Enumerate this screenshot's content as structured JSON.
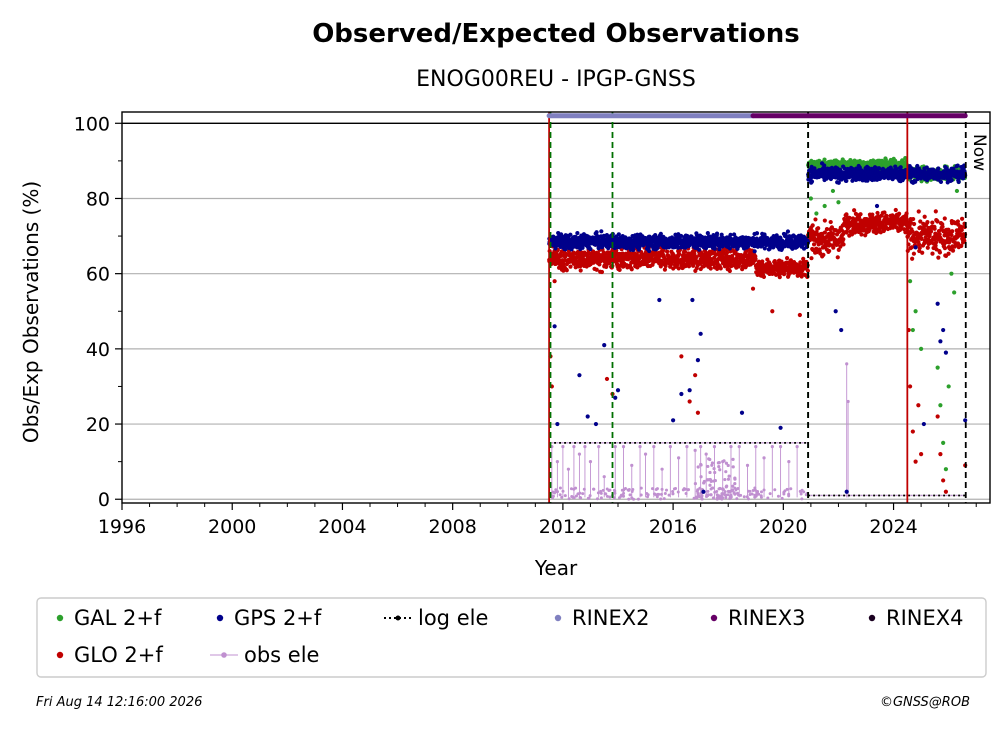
{
  "chart_data": {
    "type": "scatter",
    "title": "Observed/Expected Observations",
    "subtitle": "ENOG00REU - IPGP-GNSS",
    "xlabel": "Year",
    "ylabel": "Obs/Exp Observations (%)",
    "xlim": [
      1996,
      2027.5
    ],
    "ylim": [
      -1,
      103
    ],
    "x_ticks": [
      1996,
      2000,
      2004,
      2008,
      2012,
      2016,
      2020,
      2024
    ],
    "y_ticks": [
      0,
      20,
      40,
      60,
      80,
      100
    ],
    "grid": "horizontal",
    "legend_placement": "bottom",
    "now_label": "Now",
    "now_year": 2026.62,
    "legend": [
      {
        "label": "GAL 2+f",
        "color": "#2ca02c",
        "kind": "dot"
      },
      {
        "label": "GPS 2+f",
        "color": "#00008b",
        "kind": "dot"
      },
      {
        "label": "log ele",
        "color": "#000000",
        "kind": "dotted-line"
      },
      {
        "label": "RINEX2",
        "color": "#8080c0",
        "kind": "dot"
      },
      {
        "label": "RINEX3",
        "color": "#660066",
        "kind": "dot"
      },
      {
        "label": "RINEX4",
        "color": "#1a0020",
        "kind": "dot"
      },
      {
        "label": "GLO 2+f",
        "color": "#c00000",
        "kind": "dot"
      },
      {
        "label": "obs ele",
        "color": "#c090d0",
        "kind": "line-dot"
      }
    ],
    "rinex_bars": [
      {
        "name": "RINEX2",
        "x": [
          2011.5,
          2018.9
        ],
        "y": 102,
        "color": "#8080c0"
      },
      {
        "name": "RINEX3",
        "x": [
          2018.9,
          2026.6
        ],
        "y": 102,
        "color": "#660066"
      }
    ],
    "event_lines": [
      {
        "x": 2011.5,
        "color": "#c00000",
        "style": "solid"
      },
      {
        "x": 2011.55,
        "color": "#007000",
        "style": "dashed"
      },
      {
        "x": 2013.8,
        "color": "#007000",
        "style": "dashed"
      },
      {
        "x": 2020.9,
        "color": "#007000",
        "style": "dashed"
      },
      {
        "x": 2020.9,
        "color": "#000000",
        "style": "dashed"
      },
      {
        "x": 2024.5,
        "color": "#c00000",
        "style": "solid"
      },
      {
        "x": 2026.62,
        "color": "#000000",
        "style": "dashed"
      }
    ],
    "log_ele": [
      {
        "x": [
          2011.5,
          2020.9
        ],
        "y": 15
      },
      {
        "x": [
          2020.9,
          2026.6
        ],
        "y": 1
      }
    ],
    "series": [
      {
        "name": "GPS 2+f",
        "color": "#00008b",
        "segments": [
          {
            "x": [
              2011.5,
              2020.9
            ],
            "y_center": 68.5,
            "spread": 2.0
          },
          {
            "x": [
              2020.9,
              2024.5
            ],
            "y_center": 86.5,
            "spread": 2.0
          },
          {
            "x": [
              2024.5,
              2026.6
            ],
            "y_center": 86.5,
            "spread": 2.0
          }
        ],
        "outliers": [
          [
            2011.7,
            46
          ],
          [
            2011.8,
            20
          ],
          [
            2012.6,
            33
          ],
          [
            2012.9,
            22
          ],
          [
            2013.2,
            20
          ],
          [
            2013.5,
            41
          ],
          [
            2013.9,
            27
          ],
          [
            2014.0,
            29
          ],
          [
            2015.5,
            53
          ],
          [
            2016.0,
            21
          ],
          [
            2016.3,
            28
          ],
          [
            2016.6,
            29
          ],
          [
            2016.7,
            53
          ],
          [
            2016.9,
            37
          ],
          [
            2017.0,
            44
          ],
          [
            2017.1,
            2
          ],
          [
            2018.5,
            23
          ],
          [
            2019.9,
            19
          ],
          [
            2021.9,
            50
          ],
          [
            2022.1,
            45
          ],
          [
            2022.3,
            2
          ],
          [
            2023.4,
            78
          ],
          [
            2024.8,
            67
          ],
          [
            2025.1,
            20
          ],
          [
            2025.6,
            52
          ],
          [
            2025.7,
            42
          ],
          [
            2025.8,
            45
          ],
          [
            2025.9,
            39
          ],
          [
            2026.6,
            21
          ]
        ]
      },
      {
        "name": "GLO 2+f",
        "color": "#c00000",
        "segments": [
          {
            "x": [
              2011.5,
              2019.0
            ],
            "y_center": 64.0,
            "spread": 3.0
          },
          {
            "x": [
              2019.0,
              2020.9
            ],
            "y_center": 61.5,
            "spread": 2.5
          },
          {
            "x": [
              2020.9,
              2022.2
            ],
            "y_center": 69.0,
            "spread": 4.0
          },
          {
            "x": [
              2022.2,
              2024.5
            ],
            "y_center": 73.5,
            "spread": 3.0
          },
          {
            "x": [
              2024.5,
              2026.6
            ],
            "y_center": 70.0,
            "spread": 5.0
          }
        ],
        "outliers": [
          [
            2011.55,
            38
          ],
          [
            2011.6,
            30
          ],
          [
            2011.7,
            58
          ],
          [
            2013.6,
            32
          ],
          [
            2013.8,
            28
          ],
          [
            2016.3,
            38
          ],
          [
            2016.6,
            26
          ],
          [
            2016.8,
            33
          ],
          [
            2016.9,
            23
          ],
          [
            2018.9,
            56
          ],
          [
            2019.6,
            50
          ],
          [
            2020.6,
            49
          ],
          [
            2024.55,
            45
          ],
          [
            2024.6,
            30
          ],
          [
            2024.7,
            18
          ],
          [
            2024.8,
            10
          ],
          [
            2024.9,
            25
          ],
          [
            2025.0,
            12
          ],
          [
            2025.6,
            22
          ],
          [
            2025.7,
            12
          ],
          [
            2025.8,
            5
          ],
          [
            2025.9,
            2
          ],
          [
            2026.6,
            9
          ]
        ]
      },
      {
        "name": "GAL 2+f",
        "color": "#2ca02c",
        "segments": [
          {
            "x": [
              2020.9,
              2024.5
            ],
            "y_center": 89.0,
            "spread": 1.3
          },
          {
            "x": [
              2024.5,
              2026.6
            ],
            "y_center": 86.5,
            "spread": 2.0
          }
        ],
        "outliers": [
          [
            2021.0,
            80
          ],
          [
            2021.2,
            76
          ],
          [
            2021.5,
            78
          ],
          [
            2021.8,
            82
          ],
          [
            2022.0,
            79
          ],
          [
            2024.6,
            58
          ],
          [
            2024.7,
            45
          ],
          [
            2024.8,
            50
          ],
          [
            2025.0,
            40
          ],
          [
            2025.6,
            35
          ],
          [
            2025.7,
            25
          ],
          [
            2025.8,
            15
          ],
          [
            2025.9,
            8
          ],
          [
            2026.0,
            30
          ],
          [
            2026.1,
            60
          ],
          [
            2026.2,
            55
          ],
          [
            2026.3,
            82
          ]
        ]
      },
      {
        "name": "obs ele",
        "color": "#c090d0",
        "range": [
          2011.5,
          2020.9
        ],
        "base": [
          0,
          3
        ],
        "spikes": [
          [
            2011.6,
            14
          ],
          [
            2011.8,
            10
          ],
          [
            2012.0,
            14
          ],
          [
            2012.2,
            8
          ],
          [
            2012.4,
            14
          ],
          [
            2012.6,
            12
          ],
          [
            2012.8,
            14
          ],
          [
            2013.0,
            10
          ],
          [
            2013.3,
            14
          ],
          [
            2013.5,
            6
          ],
          [
            2013.9,
            14
          ],
          [
            2014.2,
            14
          ],
          [
            2014.5,
            9
          ],
          [
            2014.8,
            14
          ],
          [
            2015.0,
            12
          ],
          [
            2015.3,
            14
          ],
          [
            2015.6,
            8
          ],
          [
            2015.9,
            14
          ],
          [
            2016.2,
            11
          ],
          [
            2016.5,
            14
          ],
          [
            2016.8,
            13
          ],
          [
            2017.0,
            14
          ],
          [
            2017.2,
            12
          ],
          [
            2017.5,
            14
          ],
          [
            2017.8,
            10
          ],
          [
            2018.1,
            14
          ],
          [
            2018.4,
            14
          ],
          [
            2018.7,
            9
          ],
          [
            2019.0,
            14
          ],
          [
            2019.3,
            11
          ],
          [
            2019.6,
            14
          ],
          [
            2019.9,
            14
          ],
          [
            2020.2,
            10
          ],
          [
            2020.5,
            14
          ],
          [
            2022.3,
            36
          ],
          [
            2022.35,
            26
          ]
        ]
      }
    ]
  },
  "footer": {
    "timestamp": "Fri Aug 14 12:16:00 2026",
    "credit": "©GNSS@ROB"
  }
}
